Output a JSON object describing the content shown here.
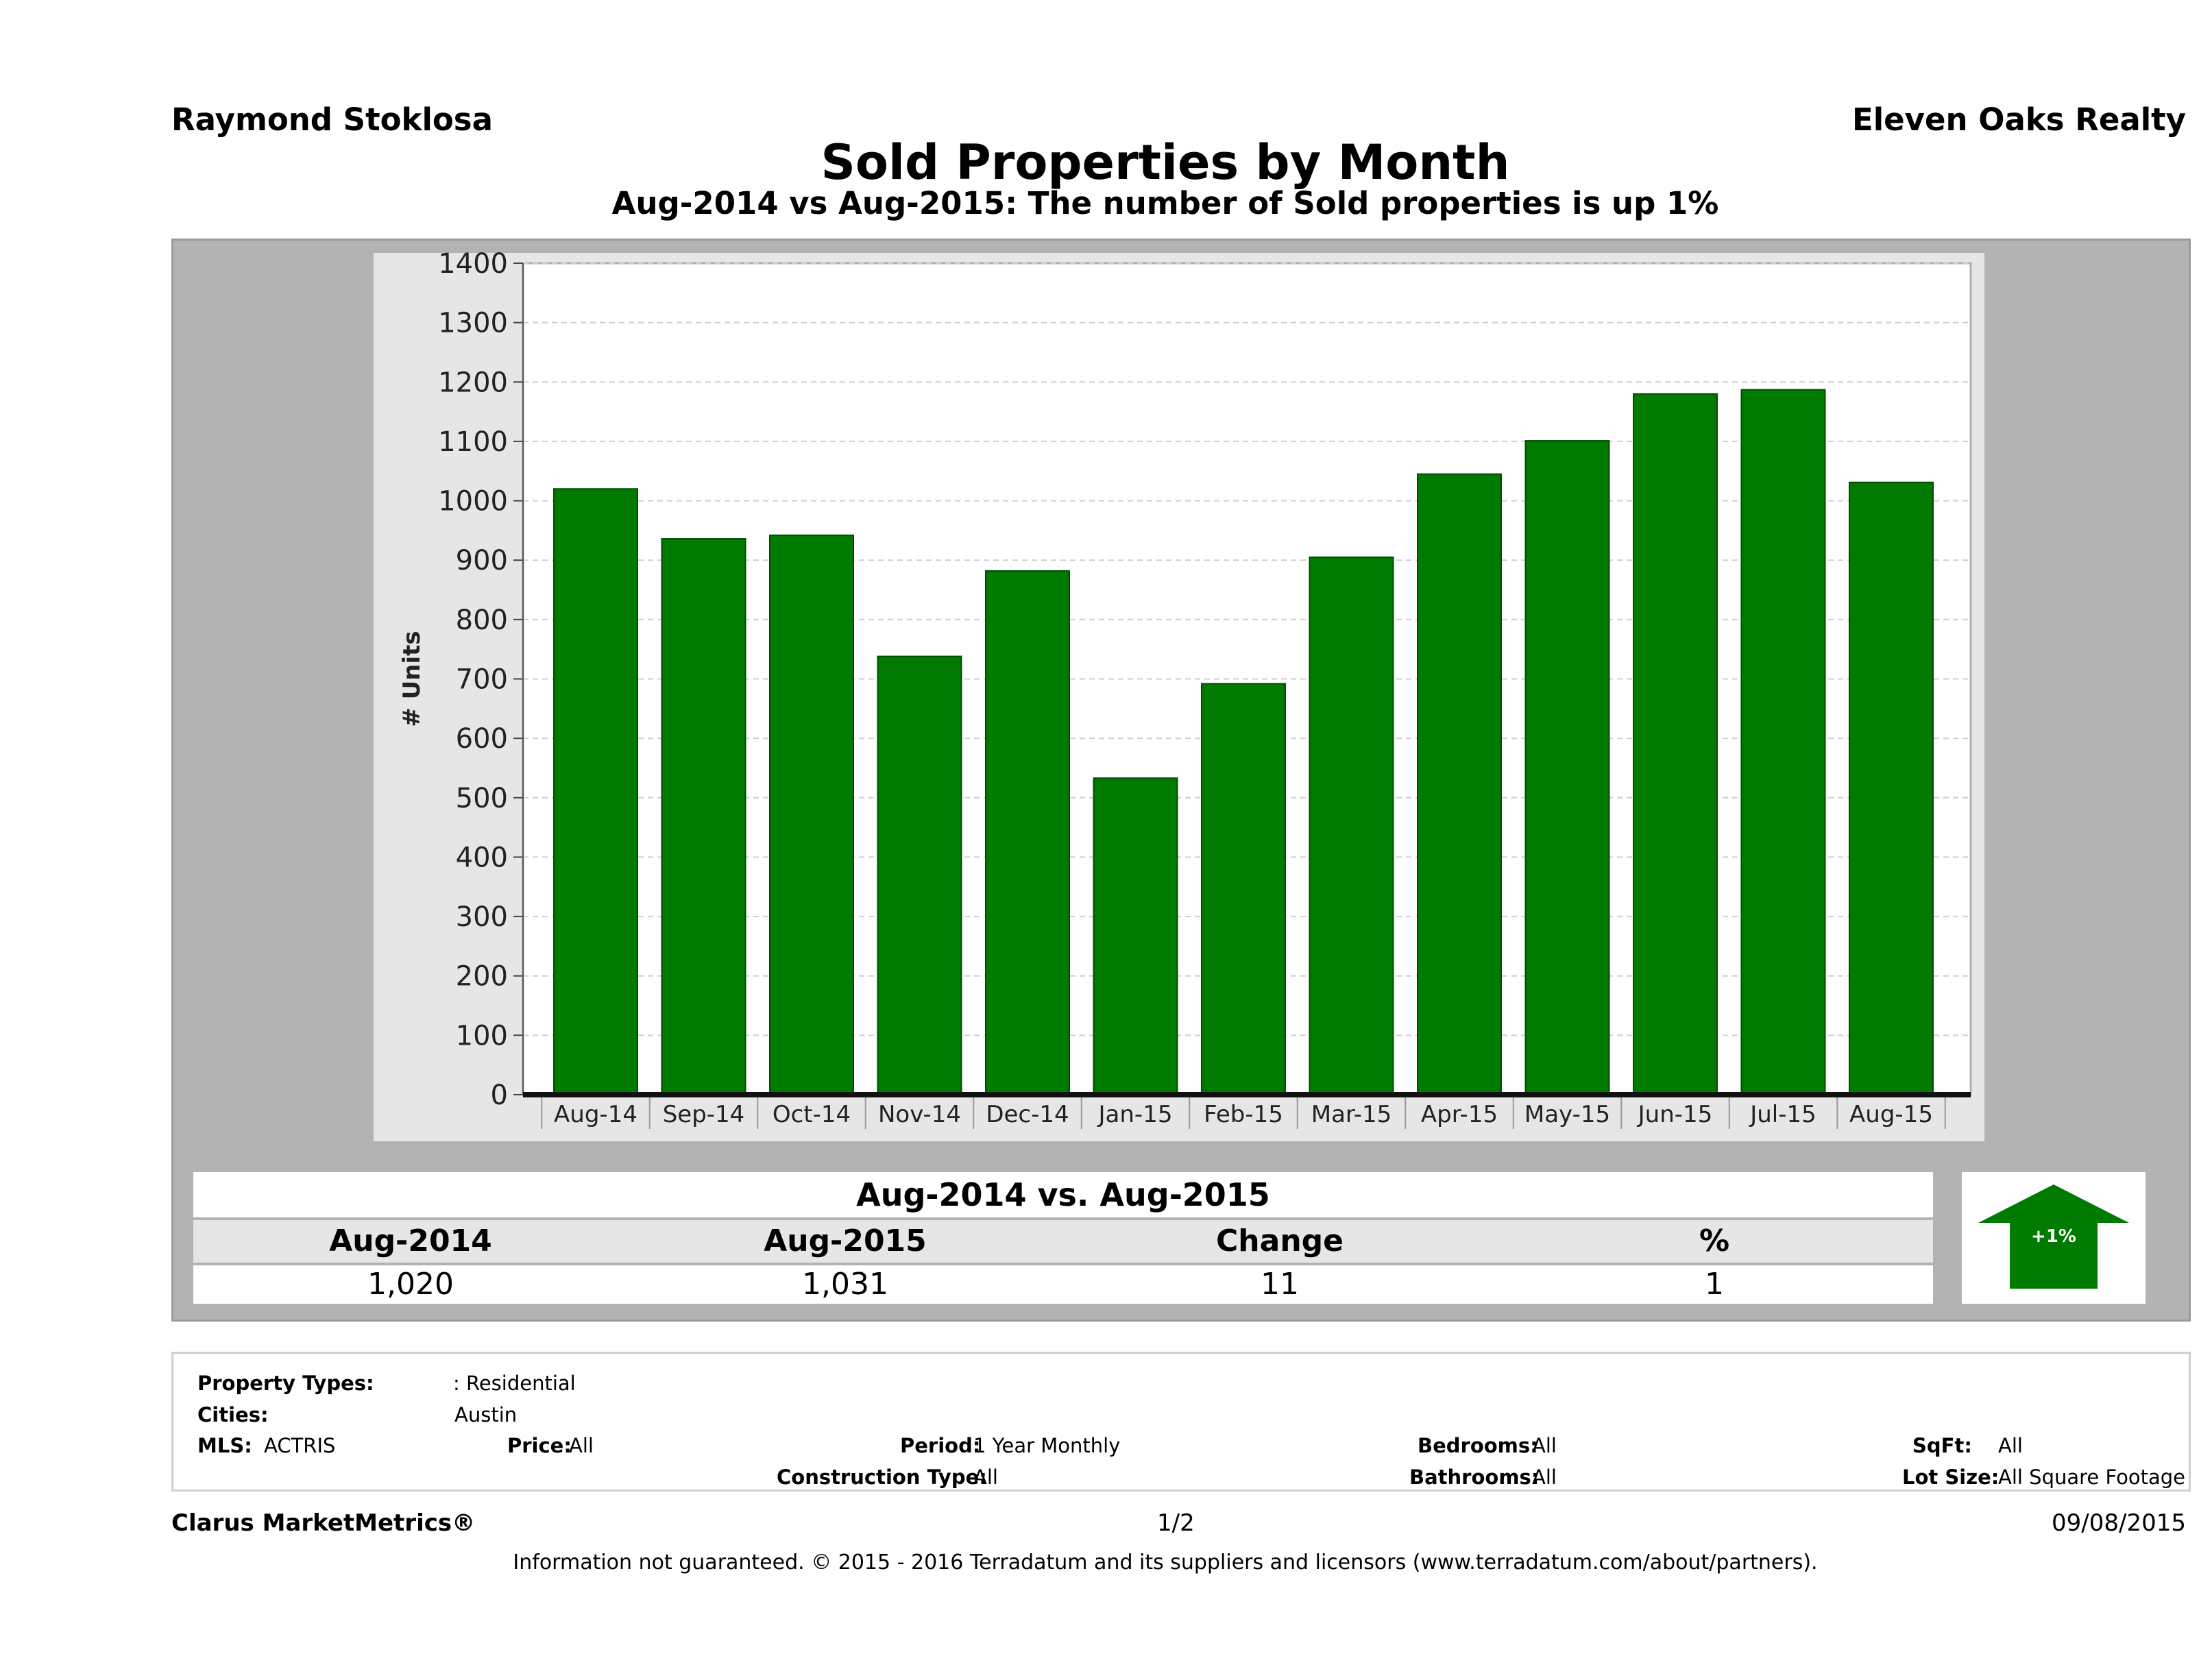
{
  "header": {
    "agent": "Raymond Stoklosa",
    "company": "Eleven Oaks Realty",
    "title": "Sold Properties by Month",
    "subtitle": "Aug-2014 vs Aug-2015: The number of Sold   properties is up 1%"
  },
  "chart_data": {
    "type": "bar",
    "categories": [
      "Aug-14",
      "Sep-14",
      "Oct-14",
      "Nov-14",
      "Dec-14",
      "Jan-15",
      "Feb-15",
      "Mar-15",
      "Apr-15",
      "May-15",
      "Jun-15",
      "Jul-15",
      "Aug-15"
    ],
    "values": [
      1020,
      936,
      942,
      738,
      882,
      533,
      692,
      905,
      1045,
      1101,
      1180,
      1187,
      1031
    ],
    "ylabel": "# Units",
    "ylim": [
      0,
      1400
    ],
    "yticks": [
      0,
      100,
      200,
      300,
      400,
      500,
      600,
      700,
      800,
      900,
      1000,
      1100,
      1200,
      1300,
      1400
    ],
    "bar_color": "#007a00",
    "grid": true
  },
  "summary": {
    "title": "Aug-2014 vs. Aug-2015",
    "headers": [
      "Aug-2014",
      "Aug-2015",
      "Change",
      "%"
    ],
    "values": [
      "1,020",
      "1,031",
      "11",
      "1"
    ],
    "badge": "+1%",
    "arrow_color": "#007a00"
  },
  "filters": {
    "property_types_label": "Property Types:",
    "property_types_value": ": Residential",
    "cities_label": "Cities:",
    "cities_value": "Austin",
    "mls_label": "MLS:",
    "mls_value": "ACTRIS",
    "price_label": "Price:",
    "price_value": "All",
    "period_label": "Period:",
    "period_value": "1 Year Monthly",
    "construction_label": "Construction Type:",
    "construction_value": "All",
    "bedrooms_label": "Bedrooms:",
    "bedrooms_value": "All",
    "bathrooms_label": "Bathrooms:",
    "bathrooms_value": "All",
    "sqft_label": "SqFt:",
    "sqft_value": "All",
    "lot_label": "Lot Size:",
    "lot_value": "All Square Footage"
  },
  "footer": {
    "brand": "Clarus MarketMetrics®",
    "page": "1/2",
    "date": "09/08/2015",
    "disclaimer": "Information not guaranteed. © 2015 - 2016 Terradatum and its suppliers and licensors (www.terradatum.com/about/partners)."
  }
}
